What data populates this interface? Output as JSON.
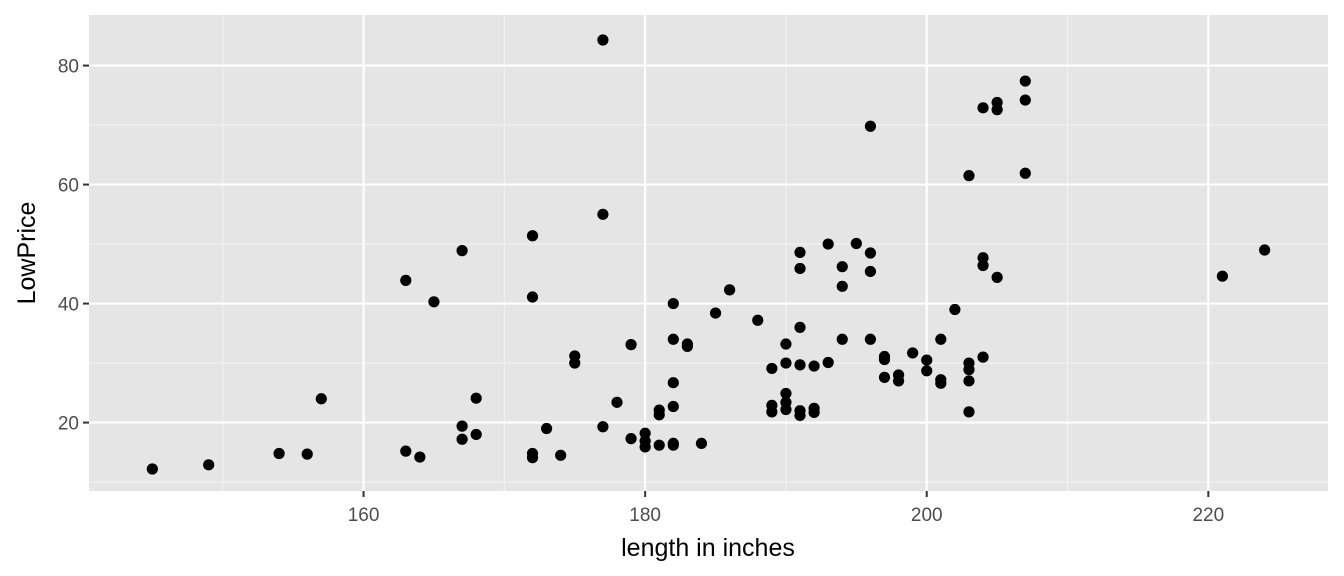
{
  "chart_data": {
    "type": "scatter",
    "title": "",
    "xlabel": "length in inches",
    "ylabel": "LowPrice",
    "xlim": [
      140.5,
      228.5
    ],
    "ylim": [
      8.5,
      88.5
    ],
    "x_ticks": [
      160,
      180,
      200,
      220
    ],
    "y_ticks": [
      20,
      40,
      60,
      80
    ],
    "x_tick_labels": [
      "160",
      "180",
      "200",
      "220"
    ],
    "y_tick_labels": [
      "20",
      "40",
      "60",
      "80"
    ],
    "grid": true,
    "legend": "none",
    "point_color": "#000000",
    "panel_color": "#e5e5e5",
    "points": [
      {
        "x": 145,
        "y": 12.2
      },
      {
        "x": 149,
        "y": 12.9
      },
      {
        "x": 154,
        "y": 14.8
      },
      {
        "x": 156,
        "y": 14.7
      },
      {
        "x": 157,
        "y": 24.0
      },
      {
        "x": 163,
        "y": 15.2
      },
      {
        "x": 163,
        "y": 43.9
      },
      {
        "x": 164,
        "y": 14.2
      },
      {
        "x": 165,
        "y": 40.3
      },
      {
        "x": 167,
        "y": 48.9
      },
      {
        "x": 167,
        "y": 19.4
      },
      {
        "x": 167,
        "y": 17.2
      },
      {
        "x": 168,
        "y": 24.1
      },
      {
        "x": 168,
        "y": 18.0
      },
      {
        "x": 172,
        "y": 51.4
      },
      {
        "x": 172,
        "y": 41.1
      },
      {
        "x": 172,
        "y": 14.8
      },
      {
        "x": 172,
        "y": 14.1
      },
      {
        "x": 173,
        "y": 19.0
      },
      {
        "x": 174,
        "y": 14.5
      },
      {
        "x": 175,
        "y": 31.2
      },
      {
        "x": 175,
        "y": 30.0
      },
      {
        "x": 177,
        "y": 84.3
      },
      {
        "x": 177,
        "y": 55.0
      },
      {
        "x": 177,
        "y": 19.3
      },
      {
        "x": 178,
        "y": 23.4
      },
      {
        "x": 179,
        "y": 33.1
      },
      {
        "x": 179,
        "y": 17.3
      },
      {
        "x": 180,
        "y": 18.2
      },
      {
        "x": 180,
        "y": 16.9
      },
      {
        "x": 180,
        "y": 15.9
      },
      {
        "x": 181,
        "y": 22.1
      },
      {
        "x": 181,
        "y": 21.3
      },
      {
        "x": 181,
        "y": 16.2
      },
      {
        "x": 182,
        "y": 40.0
      },
      {
        "x": 182,
        "y": 34.0
      },
      {
        "x": 182,
        "y": 26.7
      },
      {
        "x": 182,
        "y": 22.7
      },
      {
        "x": 182,
        "y": 16.5
      },
      {
        "x": 182,
        "y": 16.2
      },
      {
        "x": 183,
        "y": 33.2
      },
      {
        "x": 183,
        "y": 32.8
      },
      {
        "x": 184,
        "y": 16.5
      },
      {
        "x": 185,
        "y": 38.4
      },
      {
        "x": 186,
        "y": 42.3
      },
      {
        "x": 188,
        "y": 37.2
      },
      {
        "x": 189,
        "y": 29.1
      },
      {
        "x": 189,
        "y": 22.9
      },
      {
        "x": 189,
        "y": 21.8
      },
      {
        "x": 190,
        "y": 33.2
      },
      {
        "x": 190,
        "y": 30.0
      },
      {
        "x": 190,
        "y": 24.9
      },
      {
        "x": 190,
        "y": 23.4
      },
      {
        "x": 190,
        "y": 22.2
      },
      {
        "x": 191,
        "y": 48.6
      },
      {
        "x": 191,
        "y": 45.9
      },
      {
        "x": 191,
        "y": 36.0
      },
      {
        "x": 191,
        "y": 29.7
      },
      {
        "x": 191,
        "y": 22.0
      },
      {
        "x": 191,
        "y": 21.2
      },
      {
        "x": 192,
        "y": 29.5
      },
      {
        "x": 192,
        "y": 22.4
      },
      {
        "x": 192,
        "y": 21.7
      },
      {
        "x": 193,
        "y": 50.0
      },
      {
        "x": 193,
        "y": 30.1
      },
      {
        "x": 194,
        "y": 46.2
      },
      {
        "x": 194,
        "y": 42.9
      },
      {
        "x": 194,
        "y": 34.0
      },
      {
        "x": 195,
        "y": 50.1
      },
      {
        "x": 196,
        "y": 69.8
      },
      {
        "x": 196,
        "y": 48.5
      },
      {
        "x": 196,
        "y": 45.4
      },
      {
        "x": 196,
        "y": 34.0
      },
      {
        "x": 197,
        "y": 31.1
      },
      {
        "x": 197,
        "y": 30.6
      },
      {
        "x": 197,
        "y": 27.6
      },
      {
        "x": 198,
        "y": 28.0
      },
      {
        "x": 198,
        "y": 27.0
      },
      {
        "x": 199,
        "y": 31.7
      },
      {
        "x": 200,
        "y": 30.5
      },
      {
        "x": 200,
        "y": 28.7
      },
      {
        "x": 201,
        "y": 34.0
      },
      {
        "x": 201,
        "y": 27.2
      },
      {
        "x": 201,
        "y": 26.6
      },
      {
        "x": 202,
        "y": 39.0
      },
      {
        "x": 203,
        "y": 61.5
      },
      {
        "x": 203,
        "y": 30.0
      },
      {
        "x": 203,
        "y": 28.9
      },
      {
        "x": 203,
        "y": 27.0
      },
      {
        "x": 203,
        "y": 21.8
      },
      {
        "x": 204,
        "y": 72.9
      },
      {
        "x": 204,
        "y": 47.7
      },
      {
        "x": 204,
        "y": 46.4
      },
      {
        "x": 204,
        "y": 31.0
      },
      {
        "x": 205,
        "y": 73.8
      },
      {
        "x": 205,
        "y": 72.6
      },
      {
        "x": 205,
        "y": 44.4
      },
      {
        "x": 207,
        "y": 77.4
      },
      {
        "x": 207,
        "y": 74.2
      },
      {
        "x": 207,
        "y": 61.9
      },
      {
        "x": 221,
        "y": 44.6
      },
      {
        "x": 224,
        "y": 49.0
      }
    ]
  }
}
